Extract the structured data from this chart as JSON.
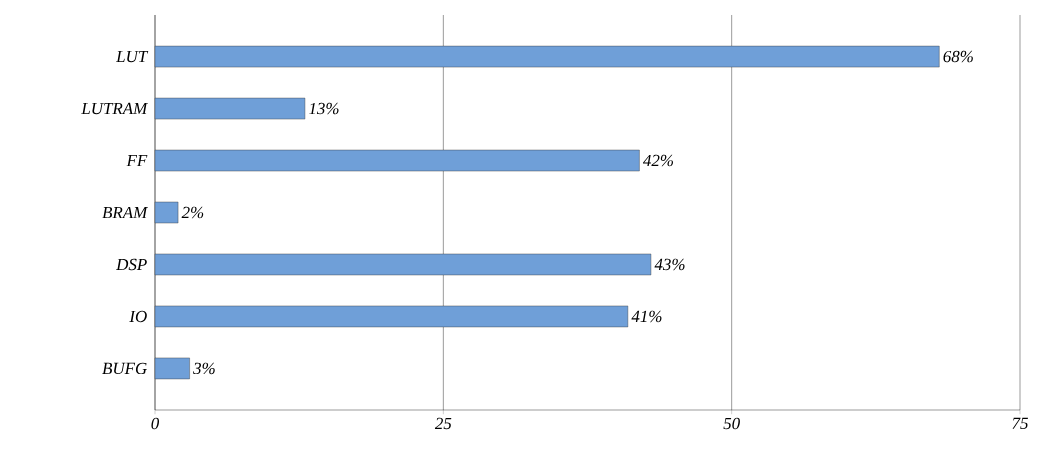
{
  "chart_data": {
    "type": "bar",
    "orientation": "horizontal",
    "categories": [
      "LUT",
      "LUTRAM",
      "FF",
      "BRAM",
      "DSP",
      "IO",
      "BUFG"
    ],
    "values": [
      68,
      13,
      42,
      2,
      43,
      41,
      3
    ],
    "value_labels": [
      "68%",
      "13%",
      "42%",
      "2%",
      "43%",
      "41%",
      "3%"
    ],
    "color": "#6f9fd8",
    "xlim": [
      0,
      75
    ],
    "xticks": [
      0,
      25,
      50,
      75
    ],
    "grid": "x"
  }
}
